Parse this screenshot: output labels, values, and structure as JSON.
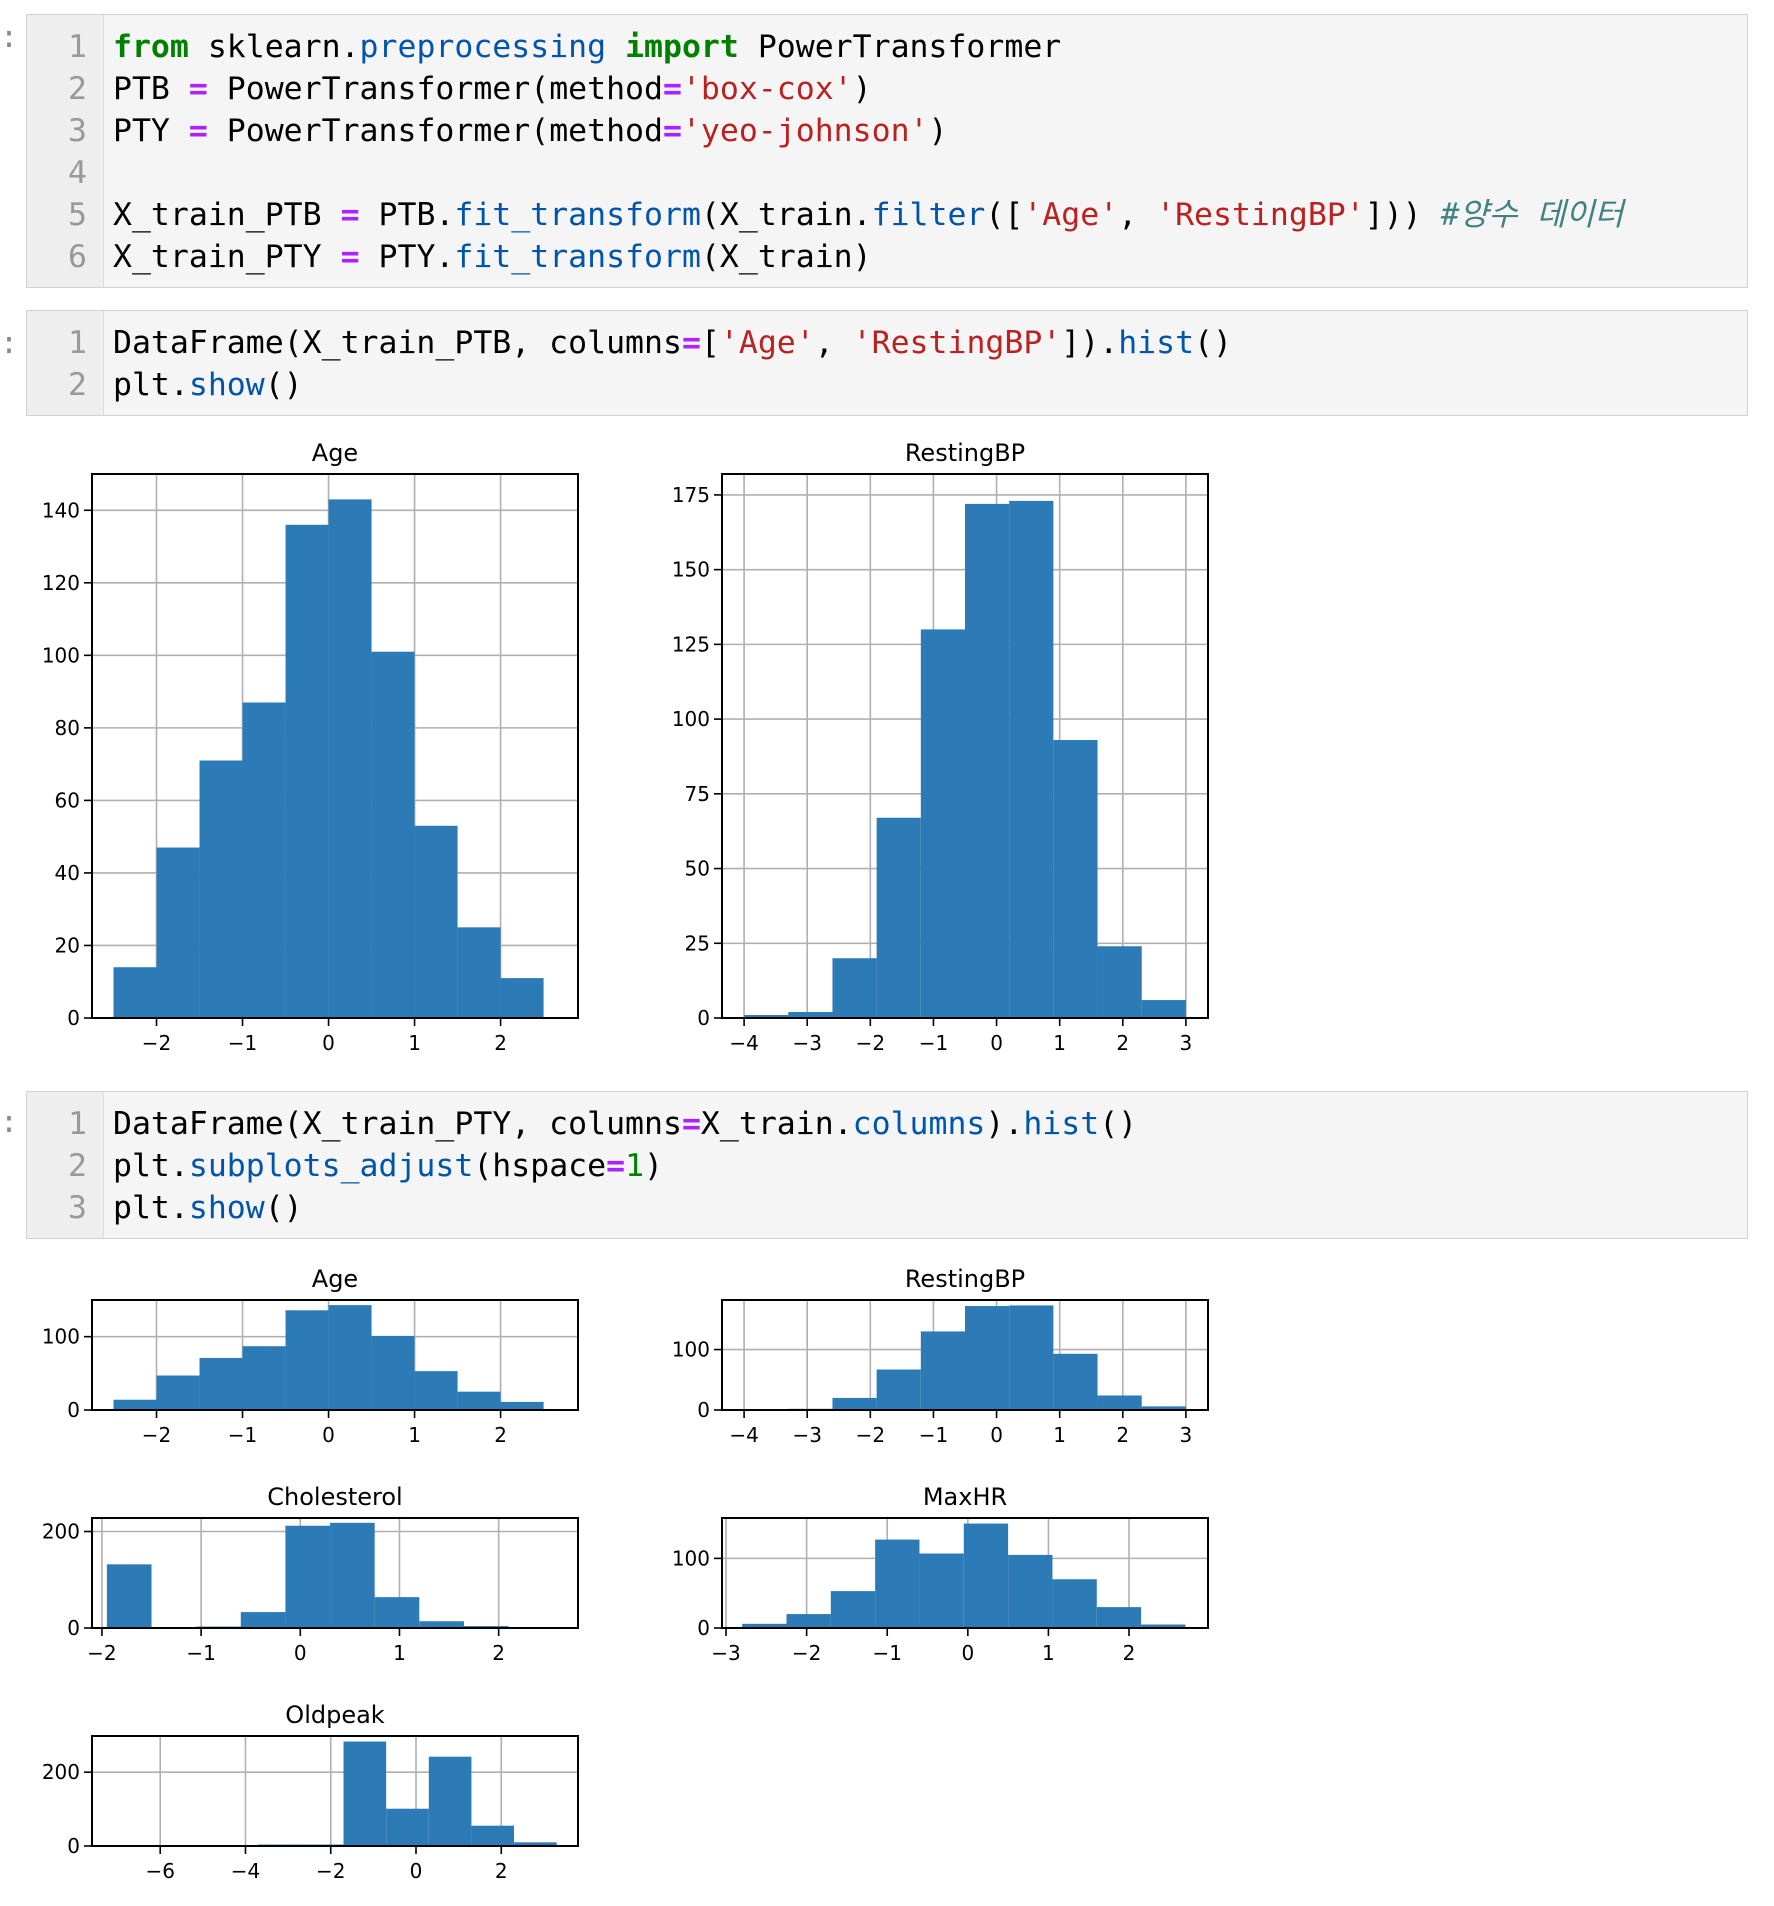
{
  "prompts": [
    ":",
    ":",
    ":"
  ],
  "cells": [
    {
      "lines": [
        {
          "n": "1",
          "tokens": [
            [
              "kw",
              "from"
            ],
            [
              "t",
              " sklearn."
            ],
            [
              "mod",
              "preprocessing"
            ],
            [
              "t",
              " "
            ],
            [
              "kw",
              "import"
            ],
            [
              "t",
              " PowerTransformer"
            ]
          ]
        },
        {
          "n": "2",
          "tokens": [
            [
              "t",
              "PTB "
            ],
            [
              "op",
              "="
            ],
            [
              "t",
              " PowerTransformer(method"
            ],
            [
              "op",
              "="
            ],
            [
              "str",
              "'box-cox'"
            ],
            [
              "t",
              ")"
            ]
          ]
        },
        {
          "n": "3",
          "tokens": [
            [
              "t",
              "PTY "
            ],
            [
              "op",
              "="
            ],
            [
              "t",
              " PowerTransformer(method"
            ],
            [
              "op",
              "="
            ],
            [
              "str",
              "'yeo-johnson'"
            ],
            [
              "t",
              ")"
            ]
          ]
        },
        {
          "n": "4",
          "tokens": []
        },
        {
          "n": "5",
          "tokens": [
            [
              "t",
              "X_train_PTB "
            ],
            [
              "op",
              "="
            ],
            [
              "t",
              " PTB."
            ],
            [
              "fn",
              "fit_transform"
            ],
            [
              "t",
              "(X_train."
            ],
            [
              "fn",
              "filter"
            ],
            [
              "t",
              "(["
            ],
            [
              "str",
              "'Age'"
            ],
            [
              "t",
              ", "
            ],
            [
              "str",
              "'RestingBP'"
            ],
            [
              "t",
              "])) "
            ],
            [
              "com",
              "#양수 데이터"
            ]
          ]
        },
        {
          "n": "6",
          "tokens": [
            [
              "t",
              "X_train_PTY "
            ],
            [
              "op",
              "="
            ],
            [
              "t",
              " PTY."
            ],
            [
              "fn",
              "fit_transform"
            ],
            [
              "t",
              "(X_train)"
            ]
          ]
        }
      ]
    },
    {
      "lines": [
        {
          "n": "1",
          "tokens": [
            [
              "t",
              "DataFrame(X_train_PTB, columns"
            ],
            [
              "op",
              "="
            ],
            [
              "t",
              "["
            ],
            [
              "str",
              "'Age'"
            ],
            [
              "t",
              ", "
            ],
            [
              "str",
              "'RestingBP'"
            ],
            [
              "t",
              "])."
            ],
            [
              "fn",
              "hist"
            ],
            [
              "t",
              "()"
            ]
          ]
        },
        {
          "n": "2",
          "tokens": [
            [
              "t",
              "plt."
            ],
            [
              "fn",
              "show"
            ],
            [
              "t",
              "()"
            ]
          ]
        }
      ]
    },
    {
      "lines": [
        {
          "n": "1",
          "tokens": [
            [
              "t",
              "DataFrame(X_train_PTY, columns"
            ],
            [
              "op",
              "="
            ],
            [
              "t",
              "X_train."
            ],
            [
              "fn",
              "columns"
            ],
            [
              "t",
              ")."
            ],
            [
              "fn",
              "hist"
            ],
            [
              "t",
              "()"
            ]
          ]
        },
        {
          "n": "2",
          "tokens": [
            [
              "t",
              "plt."
            ],
            [
              "fn",
              "subplots_adjust"
            ],
            [
              "t",
              "(hspace"
            ],
            [
              "op",
              "="
            ],
            [
              "num",
              "1"
            ],
            [
              "t",
              ")"
            ]
          ]
        },
        {
          "n": "3",
          "tokens": [
            [
              "t",
              "plt."
            ],
            [
              "fn",
              "show"
            ],
            [
              "t",
              "()"
            ]
          ]
        }
      ]
    }
  ],
  "colors": {
    "bar": "#2c7bb6",
    "grid": "#b0b0b0",
    "frame": "#000000"
  },
  "chart_data": [
    {
      "type": "bar",
      "title": "Age",
      "bin_edges": [
        -2.5,
        -2.0,
        -1.5,
        -1.0,
        -0.5,
        0.0,
        0.5,
        1.0,
        1.5,
        2.0,
        2.5
      ],
      "values": [
        14,
        47,
        71,
        87,
        136,
        143,
        101,
        53,
        25,
        11
      ],
      "xlim": [
        -2.75,
        2.9
      ],
      "ylim": [
        0,
        150
      ],
      "xticks": [
        "−2",
        "−1",
        "0",
        "1",
        "2"
      ],
      "xtick_values": [
        -2,
        -1,
        0,
        1,
        2
      ],
      "yticks": [
        "0",
        "20",
        "40",
        "60",
        "80",
        "100",
        "120",
        "140"
      ],
      "ytick_values": [
        0,
        20,
        40,
        60,
        80,
        100,
        120,
        140
      ],
      "grid": true
    },
    {
      "type": "bar",
      "title": "RestingBP",
      "bin_edges": [
        -4.0,
        -3.3,
        -2.6,
        -1.9,
        -1.2,
        -0.5,
        0.2,
        0.9,
        1.6,
        2.3,
        3.0
      ],
      "values": [
        1,
        2,
        20,
        67,
        130,
        172,
        173,
        93,
        24,
        6
      ],
      "xlim": [
        -4.35,
        3.35
      ],
      "ylim": [
        0,
        182
      ],
      "xticks": [
        "−4",
        "−3",
        "−2",
        "−1",
        "0",
        "1",
        "2",
        "3"
      ],
      "xtick_values": [
        -4,
        -3,
        -2,
        -1,
        0,
        1,
        2,
        3
      ],
      "yticks": [
        "0",
        "25",
        "50",
        "75",
        "100",
        "125",
        "150",
        "175"
      ],
      "ytick_values": [
        0,
        25,
        50,
        75,
        100,
        125,
        150,
        175
      ],
      "grid": true
    },
    {
      "type": "bar",
      "title": "Age",
      "bin_edges": [
        -2.5,
        -2.0,
        -1.5,
        -1.0,
        -0.5,
        0.0,
        0.5,
        1.0,
        1.5,
        2.0,
        2.5
      ],
      "values": [
        14,
        47,
        71,
        87,
        136,
        143,
        101,
        53,
        25,
        11
      ],
      "xlim": [
        -2.75,
        2.9
      ],
      "ylim": [
        0,
        150
      ],
      "xticks": [
        "−2",
        "−1",
        "0",
        "1",
        "2"
      ],
      "xtick_values": [
        -2,
        -1,
        0,
        1,
        2
      ],
      "yticks": [
        "0",
        "100"
      ],
      "ytick_values": [
        0,
        100
      ],
      "grid": true
    },
    {
      "type": "bar",
      "title": "RestingBP",
      "bin_edges": [
        -4.0,
        -3.3,
        -2.6,
        -1.9,
        -1.2,
        -0.5,
        0.2,
        0.9,
        1.6,
        2.3,
        3.0
      ],
      "values": [
        1,
        2,
        20,
        67,
        130,
        172,
        173,
        93,
        24,
        6
      ],
      "xlim": [
        -4.35,
        3.35
      ],
      "ylim": [
        0,
        182
      ],
      "xticks": [
        "−4",
        "−3",
        "−2",
        "−1",
        "0",
        "1",
        "2",
        "3"
      ],
      "xtick_values": [
        -4,
        -3,
        -2,
        -1,
        0,
        1,
        2,
        3
      ],
      "yticks": [
        "0",
        "100"
      ],
      "ytick_values": [
        0,
        100
      ],
      "grid": true
    },
    {
      "type": "bar",
      "title": "Cholesterol",
      "bin_edges": [
        -1.95,
        -1.5,
        -1.05,
        -0.6,
        -0.15,
        0.3,
        0.75,
        1.2,
        1.65,
        2.1,
        2.55
      ],
      "values": [
        132,
        0,
        3,
        33,
        212,
        218,
        64,
        14,
        4,
        2
      ],
      "xlim": [
        -2.1,
        2.8
      ],
      "ylim": [
        0,
        228
      ],
      "xticks": [
        "−2",
        "−1",
        "0",
        "1",
        "2"
      ],
      "xtick_values": [
        -2,
        -1,
        0,
        1,
        2
      ],
      "yticks": [
        "0",
        "200"
      ],
      "ytick_values": [
        0,
        200
      ],
      "grid": true
    },
    {
      "type": "bar",
      "title": "MaxHR",
      "bin_edges": [
        -2.8,
        -2.25,
        -1.7,
        -1.15,
        -0.6,
        -0.05,
        0.5,
        1.05,
        1.6,
        2.15,
        2.7
      ],
      "values": [
        6,
        20,
        53,
        127,
        107,
        150,
        105,
        70,
        30,
        5
      ],
      "xlim": [
        -3.05,
        2.98
      ],
      "ylim": [
        0,
        158
      ],
      "xticks": [
        "−3",
        "−2",
        "−1",
        "0",
        "1",
        "2"
      ],
      "xtick_values": [
        -3,
        -2,
        -1,
        0,
        1,
        2
      ],
      "yticks": [
        "0",
        "100"
      ],
      "ytick_values": [
        0,
        100
      ],
      "grid": true
    },
    {
      "type": "bar",
      "title": "Oldpeak",
      "bin_edges": [
        -6.75,
        -5.7,
        -4.7,
        -3.7,
        -2.7,
        -1.7,
        -0.7,
        0.3,
        1.3,
        2.3,
        3.3
      ],
      "values": [
        1,
        0,
        0,
        4,
        4,
        283,
        101,
        242,
        55,
        10
      ],
      "xlim": [
        -7.6,
        3.8
      ],
      "ylim": [
        0,
        298
      ],
      "xticks": [
        "−6",
        "−4",
        "−2",
        "0",
        "2"
      ],
      "xtick_values": [
        -6,
        -4,
        -2,
        0,
        2
      ],
      "yticks": [
        "0",
        "200"
      ],
      "ytick_values": [
        0,
        200
      ],
      "grid": true
    }
  ]
}
